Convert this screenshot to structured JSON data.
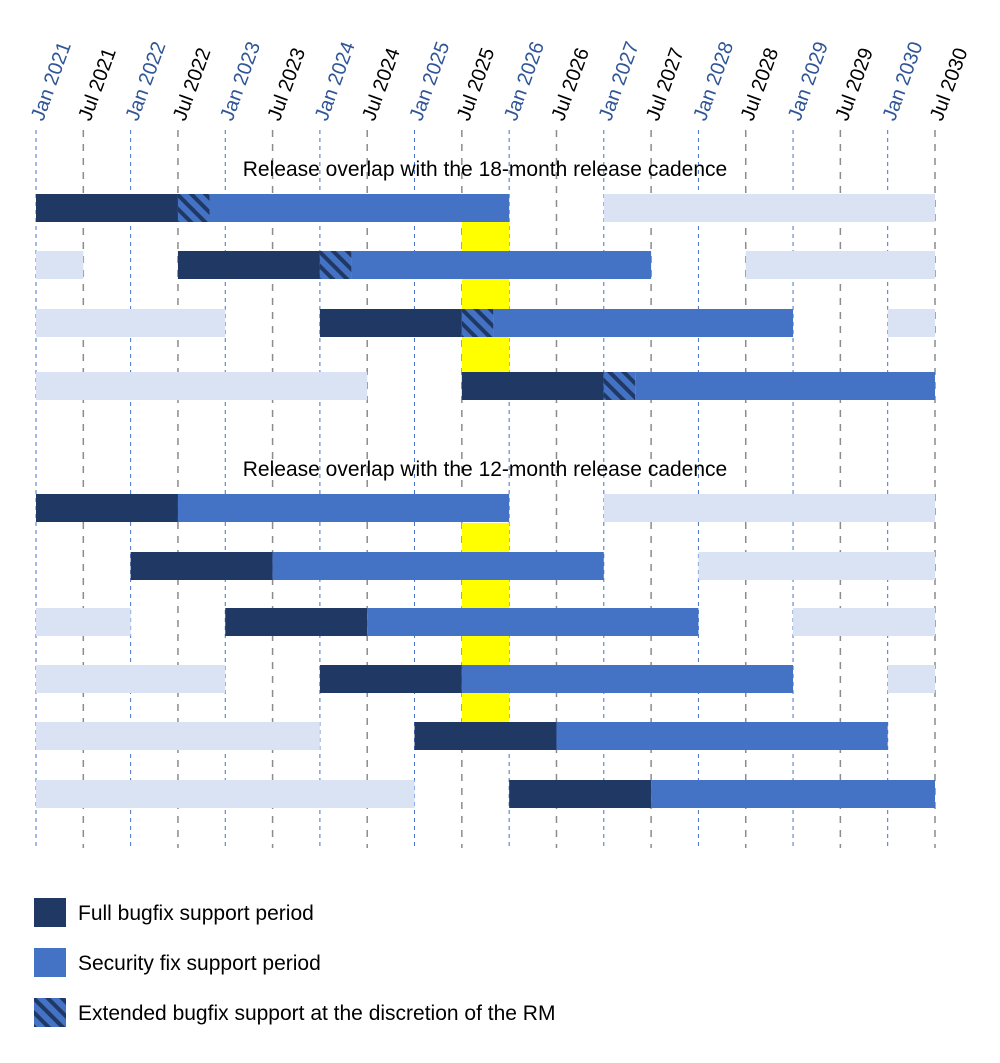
{
  "chart_data": {
    "type": "gantt",
    "x_ticks": [
      "Jan 2021",
      "Jul 2021",
      "Jan 2022",
      "Jul 2022",
      "Jan 2023",
      "Jul 2023",
      "Jan 2024",
      "Jul 2024",
      "Jan 2025",
      "Jul 2025",
      "Jan 2026",
      "Jul 2026",
      "Jan 2027",
      "Jul 2027",
      "Jan 2028",
      "Jul 2028",
      "Jan 2029",
      "Jul 2029",
      "Jan 2030",
      "Jul 2030"
    ],
    "xlim": [
      "2021-01",
      "2030-07"
    ],
    "grid": true,
    "colors": {
      "full": "#203864",
      "security": "#4472c4",
      "inactive": "#dae3f3",
      "highlight": "#ffff00",
      "jan_label": "#2f5597",
      "jul_label": "#000000"
    },
    "panels": [
      {
        "title": "Release overlap with the 18-month release cadence",
        "highlight": [
          "2025-07",
          "2026-01"
        ],
        "rows": [
          {
            "full": [
              "2021-01",
              "2022-07"
            ],
            "extended": [
              "2022-07",
              "2022-11"
            ],
            "security": [
              "2022-11",
              "2026-01"
            ],
            "inactive": [
              [
                "2027-01",
                "2030-07"
              ]
            ]
          },
          {
            "full": [
              "2022-07",
              "2024-01"
            ],
            "extended": [
              "2024-01",
              "2024-05"
            ],
            "security": [
              "2024-05",
              "2027-07"
            ],
            "inactive": [
              [
                "2021-01",
                "2021-07"
              ],
              [
                "2028-07",
                "2030-07"
              ]
            ]
          },
          {
            "full": [
              "2024-01",
              "2025-07"
            ],
            "extended": [
              "2025-07",
              "2025-11"
            ],
            "security": [
              "2025-11",
              "2029-01"
            ],
            "inactive": [
              [
                "2021-01",
                "2023-01"
              ],
              [
                "2030-01",
                "2030-07"
              ]
            ]
          },
          {
            "full": [
              "2025-07",
              "2027-01"
            ],
            "extended": [
              "2027-01",
              "2027-05"
            ],
            "security": [
              "2027-05",
              "2030-07"
            ],
            "inactive": [
              [
                "2021-01",
                "2024-07"
              ]
            ]
          }
        ]
      },
      {
        "title": "Release overlap with the 12-month release cadence",
        "highlight": [
          "2025-07",
          "2026-01"
        ],
        "rows": [
          {
            "full": [
              "2021-01",
              "2022-07"
            ],
            "security": [
              "2022-07",
              "2026-01"
            ],
            "inactive": [
              [
                "2027-01",
                "2030-07"
              ]
            ]
          },
          {
            "full": [
              "2022-01",
              "2023-07"
            ],
            "security": [
              "2023-07",
              "2027-01"
            ],
            "inactive": [
              [
                "2028-01",
                "2030-07"
              ]
            ]
          },
          {
            "full": [
              "2023-01",
              "2024-07"
            ],
            "security": [
              "2024-07",
              "2028-01"
            ],
            "inactive": [
              [
                "2021-01",
                "2022-01"
              ],
              [
                "2029-01",
                "2030-07"
              ]
            ]
          },
          {
            "full": [
              "2024-01",
              "2025-07"
            ],
            "security": [
              "2025-07",
              "2029-01"
            ],
            "inactive": [
              [
                "2021-01",
                "2023-01"
              ],
              [
                "2030-01",
                "2030-07"
              ]
            ]
          },
          {
            "full": [
              "2025-01",
              "2026-07"
            ],
            "security": [
              "2026-07",
              "2030-01"
            ],
            "inactive": [
              [
                "2021-01",
                "2024-01"
              ]
            ]
          },
          {
            "full": [
              "2026-01",
              "2027-07"
            ],
            "security": [
              "2027-07",
              "2030-07"
            ],
            "inactive": [
              [
                "2021-01",
                "2025-01"
              ]
            ]
          }
        ]
      }
    ],
    "legend": [
      {
        "key": "full",
        "label": "Full bugfix support period"
      },
      {
        "key": "security",
        "label": "Security fix support period"
      },
      {
        "key": "extended",
        "label": "Extended bugfix support at the discretion of the RM"
      }
    ]
  }
}
